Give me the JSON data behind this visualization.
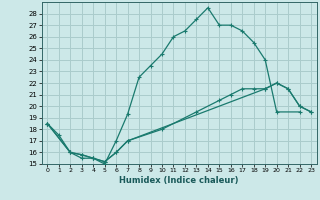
{
  "title": "",
  "xlabel": "Humidex (Indice chaleur)",
  "bg_color": "#cce8e8",
  "grid_color": "#aacccc",
  "line_color": "#1a7a6e",
  "xlim": [
    -0.5,
    23.5
  ],
  "ylim": [
    15,
    29
  ],
  "xticks": [
    0,
    1,
    2,
    3,
    4,
    5,
    6,
    7,
    8,
    9,
    10,
    11,
    12,
    13,
    14,
    15,
    16,
    17,
    18,
    19,
    20,
    21,
    22,
    23
  ],
  "yticks": [
    15,
    16,
    17,
    18,
    19,
    20,
    21,
    22,
    23,
    24,
    25,
    26,
    27,
    28
  ],
  "line1_x": [
    0,
    1,
    2,
    3,
    4,
    5,
    6,
    7,
    8,
    9,
    10,
    11,
    12,
    13,
    14,
    15,
    16,
    17,
    18,
    19,
    20,
    22
  ],
  "line1_y": [
    18.5,
    17.5,
    16.0,
    15.5,
    15.5,
    15.0,
    17.0,
    19.3,
    22.5,
    23.5,
    24.5,
    26.0,
    26.5,
    27.5,
    28.5,
    27.0,
    27.0,
    26.5,
    25.5,
    24.0,
    19.5,
    19.5
  ],
  "line2_x": [
    0,
    2,
    3,
    4,
    5,
    6,
    7,
    19,
    20,
    21,
    22,
    23
  ],
  "line2_y": [
    18.5,
    16.0,
    15.8,
    15.5,
    15.2,
    16.0,
    17.0,
    21.5,
    22.0,
    21.5,
    20.0,
    19.5
  ],
  "line3_x": [
    0,
    2,
    3,
    4,
    5,
    6,
    7,
    10,
    13,
    15,
    16,
    17,
    18,
    19,
    20,
    21,
    22,
    23
  ],
  "line3_y": [
    18.5,
    16.0,
    15.8,
    15.5,
    15.2,
    16.0,
    17.0,
    18.0,
    19.5,
    20.5,
    21.0,
    21.5,
    21.5,
    21.5,
    22.0,
    21.5,
    20.0,
    19.5
  ]
}
